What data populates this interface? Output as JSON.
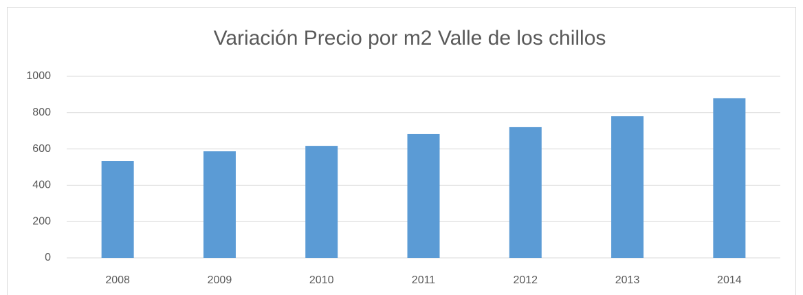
{
  "chart_data": {
    "type": "bar",
    "title": "Variación Precio por m2 Valle de los chillos",
    "categories": [
      "2008",
      "2009",
      "2010",
      "2011",
      "2012",
      "2013",
      "2014"
    ],
    "values": [
      534,
      587,
      617,
      682,
      720,
      780,
      879
    ],
    "color": "#5b9bd5",
    "ylim": [
      0,
      1000
    ],
    "yticks": [
      0,
      200,
      400,
      600,
      800,
      1000
    ],
    "grid": true
  }
}
